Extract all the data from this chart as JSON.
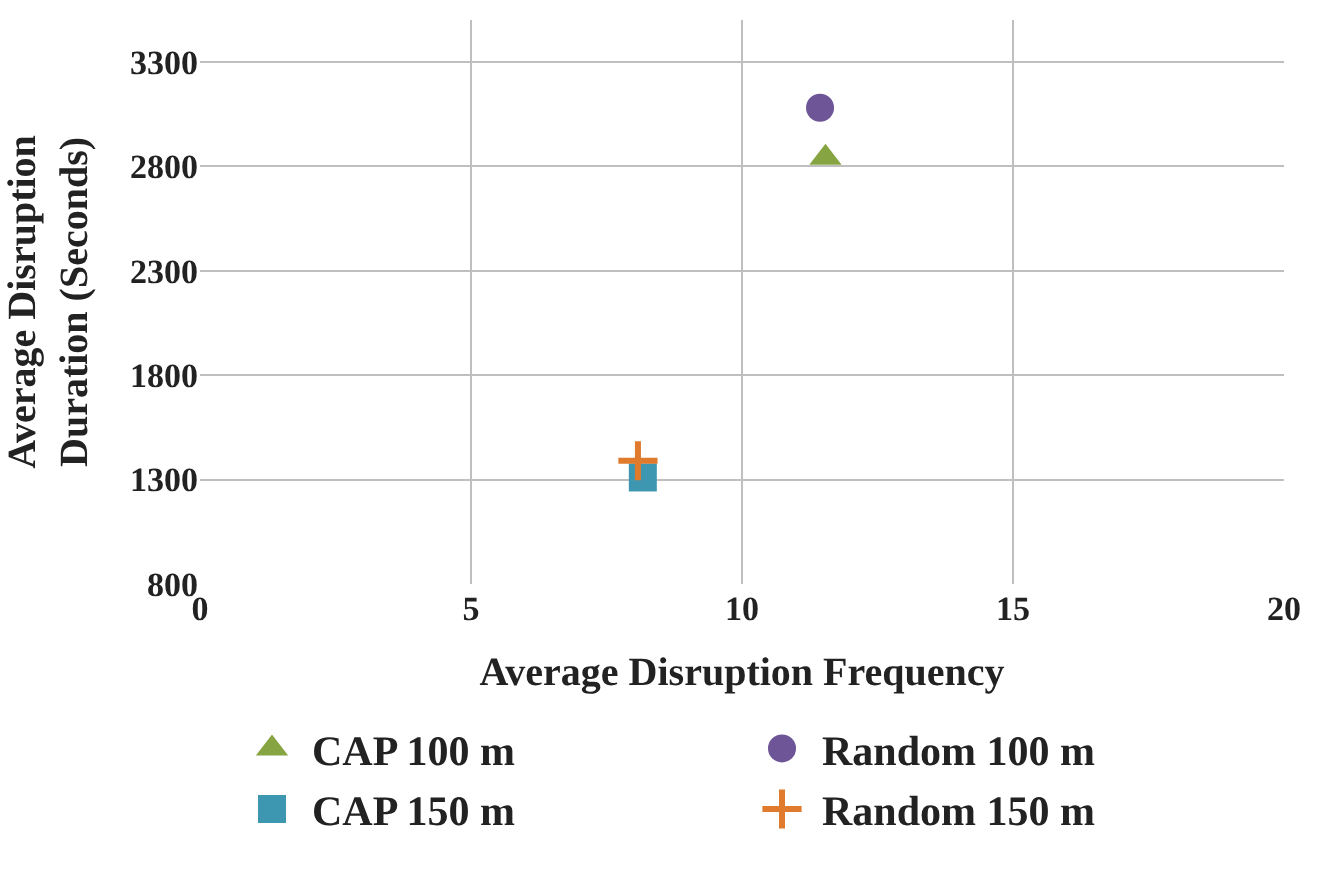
{
  "chart_data": {
    "type": "scatter",
    "xlabel": "Average Disruption Frequency",
    "ylabel": "Average Disruption\nDuration (Seconds)",
    "xlim": [
      0,
      20
    ],
    "xticks": [
      0,
      5,
      10,
      15,
      20
    ],
    "ylim": [
      800,
      3500
    ],
    "yticks": [
      800,
      1300,
      1800,
      2300,
      2800,
      3300
    ],
    "grid": true,
    "legend": "bottom",
    "series": [
      {
        "name": "CAP 100 m",
        "color": "#86a542",
        "marker": "triangle",
        "x": [
          11.54
        ],
        "values": [
          2840
        ]
      },
      {
        "name": "Random 100 m",
        "color": "#6e5597",
        "marker": "circle",
        "x": [
          11.44
        ],
        "values": [
          3080
        ]
      },
      {
        "name": "CAP 150 m",
        "color": "#3d97b0",
        "marker": "square",
        "x": [
          8.17
        ],
        "values": [
          1310
        ]
      },
      {
        "name": "Random 150 m",
        "color": "#e07b2e",
        "marker": "cross",
        "x": [
          8.08
        ],
        "values": [
          1390
        ]
      }
    ]
  }
}
